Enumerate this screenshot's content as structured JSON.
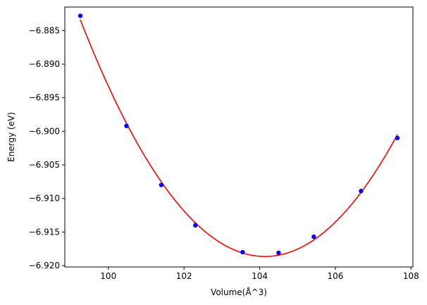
{
  "chart_data": {
    "type": "scatter",
    "title": "",
    "xlabel": "Volume(Å^3)",
    "ylabel": "Energy (eV)",
    "xlim": [
      98.85,
      108.05
    ],
    "ylim": [
      -6.9202,
      -6.8815
    ],
    "xticks": [
      100,
      102,
      104,
      106,
      108
    ],
    "xtick_labels": [
      "100",
      "102",
      "104",
      "106",
      "108"
    ],
    "yticks": [
      -6.885,
      -6.89,
      -6.895,
      -6.9,
      -6.905,
      -6.91,
      -6.915,
      -6.92
    ],
    "ytick_labels": [
      "−6.885",
      "−6.890",
      "−6.895",
      "−6.900",
      "−6.905",
      "−6.910",
      "−6.915",
      "−6.920"
    ],
    "grid": false,
    "series": [
      {
        "kind": "points",
        "color": "#0000ff",
        "x": [
          99.26,
          100.48,
          101.4,
          102.3,
          103.55,
          104.5,
          105.43,
          106.68,
          107.64
        ],
        "y": [
          -6.8828,
          -6.8992,
          -6.908,
          -6.914,
          -6.918,
          -6.9181,
          -6.9157,
          -6.9089,
          -6.901
        ]
      },
      {
        "kind": "fit-curve",
        "color": "#ff0000",
        "x_min": 99.26,
        "x_max": 107.64
      }
    ]
  }
}
